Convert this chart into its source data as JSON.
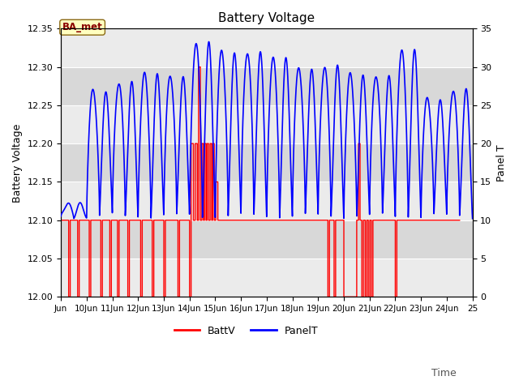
{
  "title": "Battery Voltage",
  "ylabel_left": "Battery Voltage",
  "ylabel_right": "Panel T",
  "xlabel": "Time",
  "ylim_left": [
    12.0,
    12.35
  ],
  "ylim_right": [
    0,
    35
  ],
  "annotation_text": "BA_met",
  "annotation_color": "#8B0000",
  "annotation_bg": "#FFFFC0",
  "annotation_edge": "#8B6914",
  "bg_color": "#FFFFFF",
  "plot_bg_color": "#E8E8E8",
  "band_light": "#EBEBEB",
  "band_dark": "#D8D8D8",
  "grid_color": "#FFFFFF",
  "legend_labels": [
    "BattV",
    "PanelT"
  ],
  "batt_color": "#FF0000",
  "panel_color": "#0000FF",
  "xlim": [
    9,
    25
  ],
  "x_tick_positions": [
    9,
    10,
    11,
    12,
    13,
    14,
    15,
    16,
    17,
    18,
    19,
    20,
    21,
    22,
    23,
    24,
    25
  ],
  "x_tick_labels": [
    "Jun",
    "10Jun",
    "11Jun",
    "12Jun",
    "13Jun",
    "14Jun",
    "15Jun",
    "16Jun",
    "17Jun",
    "18Jun",
    "19Jun",
    "20Jun",
    "21Jun",
    "22Jun",
    "23Jun",
    "24Jun",
    "25"
  ],
  "yticks_left": [
    12.0,
    12.05,
    12.1,
    12.15,
    12.2,
    12.25,
    12.3,
    12.35
  ],
  "yticks_right": [
    0,
    5,
    10,
    15,
    20,
    25,
    30,
    35
  ],
  "band_edges": [
    12.0,
    12.05,
    12.1,
    12.15,
    12.2,
    12.25,
    12.3,
    12.35
  ]
}
